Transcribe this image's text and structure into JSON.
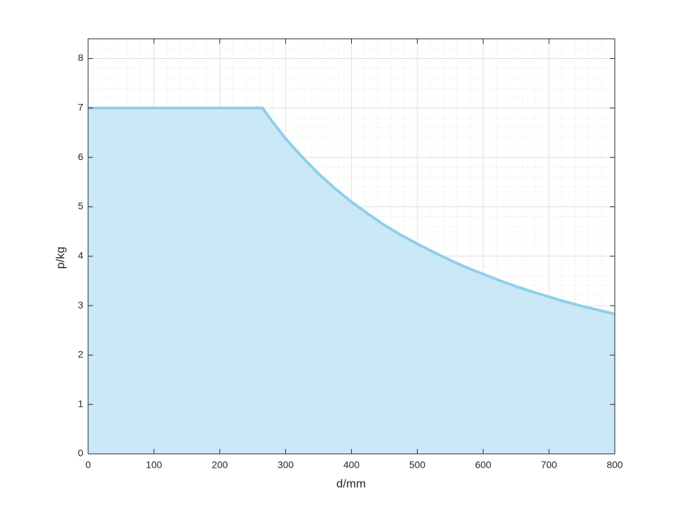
{
  "chart_data": {
    "type": "area",
    "xlabel": "d/mm",
    "ylabel": "p/kg",
    "x": [
      0,
      265,
      275,
      300,
      325,
      350,
      375,
      400,
      425,
      450,
      475,
      500,
      525,
      550,
      575,
      600,
      625,
      650,
      675,
      700,
      725,
      750,
      775,
      800
    ],
    "values": [
      7,
      7,
      6.81,
      6.38,
      6.01,
      5.67,
      5.37,
      5.1,
      4.86,
      4.63,
      4.43,
      4.25,
      4.08,
      3.92,
      3.77,
      3.64,
      3.51,
      3.39,
      3.28,
      3.18,
      3.08,
      2.99,
      2.91,
      2.83
    ],
    "color": "#8ecfea",
    "fill_color": "#c5e6f6",
    "xlim": [
      0,
      800
    ],
    "xticks": [
      0,
      100,
      200,
      300,
      400,
      500,
      600,
      700,
      800
    ],
    "ylim": [
      0,
      8.4
    ],
    "yticks": [
      0,
      1,
      2,
      3,
      4,
      5,
      6,
      7,
      8
    ],
    "grid": true,
    "minor_grid": true
  }
}
